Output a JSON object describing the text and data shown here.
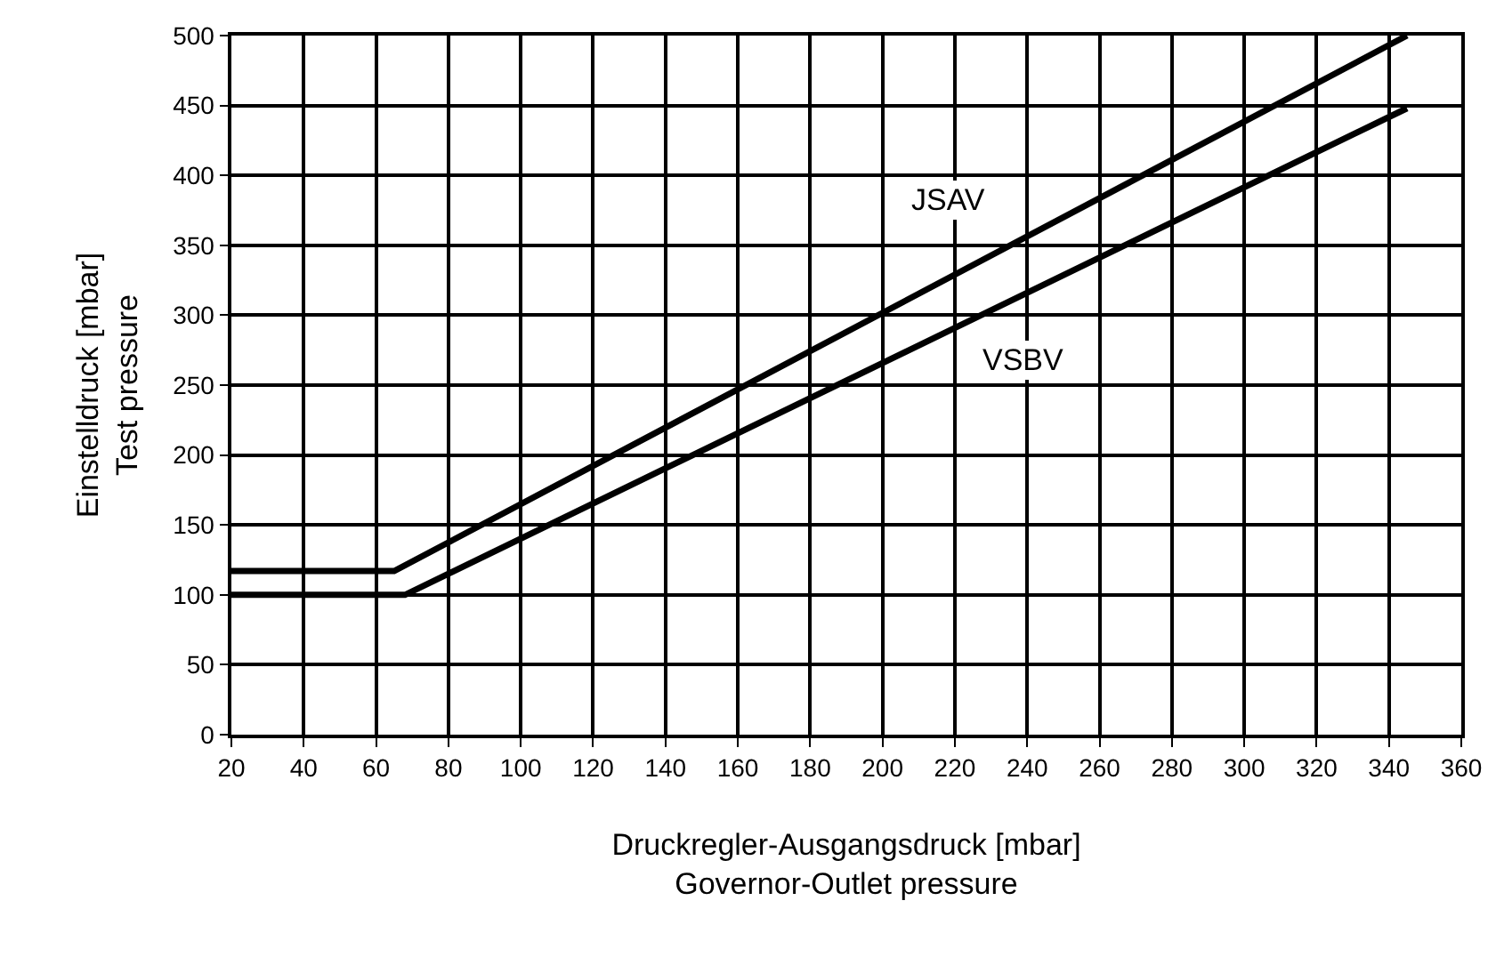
{
  "chart_data": {
    "type": "line",
    "xlabel": "Druckregler-Ausgangsdruck [mbar]\nGovernor-Outlet pressure",
    "ylabel": "Einstelldruck [mbar]\nTest pressure",
    "series": [
      {
        "name": "JSAV",
        "color": "#000000",
        "x": [
          20,
          65,
          345
        ],
        "values": [
          117,
          117,
          500
        ]
      },
      {
        "name": "VSBV",
        "color": "#000000",
        "x": [
          20,
          68,
          345
        ],
        "values": [
          100,
          100,
          448
        ]
      }
    ],
    "xlim": [
      20,
      360
    ],
    "xticks": [
      20,
      40,
      60,
      80,
      100,
      120,
      140,
      160,
      180,
      200,
      220,
      240,
      260,
      280,
      300,
      320,
      340,
      360
    ],
    "ylim": [
      0,
      500
    ],
    "yticks": [
      0,
      50,
      100,
      150,
      200,
      250,
      300,
      350,
      400,
      450,
      500
    ],
    "grid": true,
    "legend": false,
    "marker": "none",
    "line_style": "solid"
  }
}
